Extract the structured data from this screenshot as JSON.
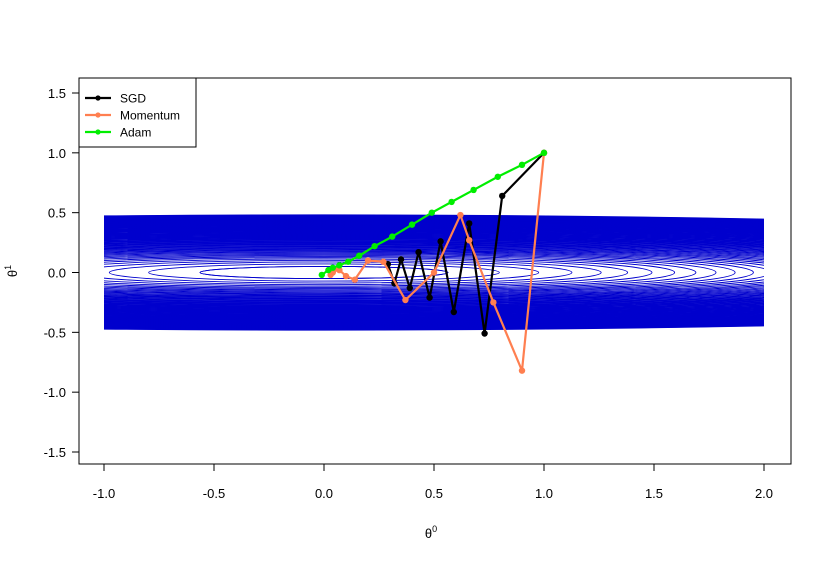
{
  "chart_data": {
    "type": "line",
    "title": "",
    "xlabel": "θ",
    "xlabel_superscript": "0",
    "ylabel": "θ",
    "ylabel_superscript": "1",
    "xlim": [
      -1.0,
      2.0
    ],
    "ylim": [
      -1.5,
      1.5
    ],
    "x_ticks": [
      "-1.0",
      "-0.5",
      "0.0",
      "0.5",
      "1.0",
      "1.5",
      "2.0"
    ],
    "y_ticks": [
      "-1.5",
      "-1.0",
      "-0.5",
      "0.0",
      "0.5",
      "1.0",
      "1.5"
    ],
    "grid": false,
    "legend_position": "top-left",
    "contour": {
      "description_type": "elliptical contours",
      "color": "#0000cd",
      "domain_x": [
        -1.0,
        2.0
      ],
      "domain_y": [
        -1.5,
        1.5
      ],
      "center": [
        0.0,
        0.0
      ],
      "x_scale": 0.1,
      "y_scale": 1.0
    },
    "series": [
      {
        "name": "SGD",
        "color": "#000000",
        "x": [
          1.0,
          0.81,
          0.73,
          0.66,
          0.59,
          0.53,
          0.48,
          0.43,
          0.39,
          0.35,
          0.32,
          0.29
        ],
        "y": [
          1.0,
          0.64,
          -0.51,
          0.41,
          -0.33,
          0.26,
          -0.21,
          0.17,
          -0.13,
          0.11,
          -0.09,
          0.07
        ]
      },
      {
        "name": "Momentum",
        "color": "#ff7f50",
        "x": [
          1.0,
          0.9,
          0.77,
          0.66,
          0.62,
          0.5,
          0.37,
          0.27,
          0.2,
          0.14,
          0.1,
          0.07,
          0.05,
          0.04,
          0.03
        ],
        "y": [
          1.0,
          -0.82,
          -0.25,
          0.27,
          0.48,
          0.0,
          -0.23,
          0.09,
          0.1,
          -0.06,
          -0.03,
          0.02,
          0.03,
          0.0,
          -0.02
        ]
      },
      {
        "name": "Adam",
        "color": "#00ee00",
        "x": [
          1.0,
          0.9,
          0.79,
          0.68,
          0.58,
          0.49,
          0.4,
          0.31,
          0.23,
          0.16,
          0.11,
          0.07,
          0.04,
          0.02,
          -0.01
        ],
        "y": [
          1.0,
          0.9,
          0.8,
          0.69,
          0.59,
          0.5,
          0.4,
          0.3,
          0.22,
          0.14,
          0.09,
          0.06,
          0.04,
          0.02,
          -0.02
        ]
      }
    ]
  }
}
